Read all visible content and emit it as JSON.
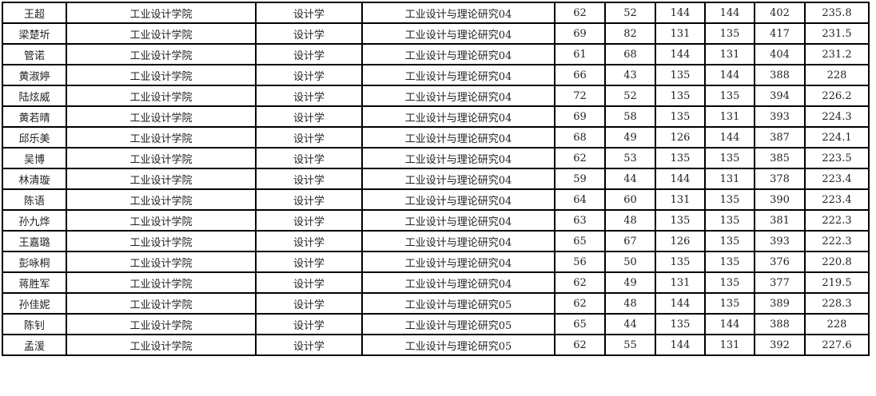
{
  "table": {
    "rows": [
      [
        "王超",
        "工业设计学院",
        "设计学",
        "工业设计与理论研究04",
        "62",
        "52",
        "144",
        "144",
        "402",
        "235.8"
      ],
      [
        "梁楚圻",
        "工业设计学院",
        "设计学",
        "工业设计与理论研究04",
        "69",
        "82",
        "131",
        "135",
        "417",
        "231.5"
      ],
      [
        "管诺",
        "工业设计学院",
        "设计学",
        "工业设计与理论研究04",
        "61",
        "68",
        "144",
        "131",
        "404",
        "231.2"
      ],
      [
        "黄淑婷",
        "工业设计学院",
        "设计学",
        "工业设计与理论研究04",
        "66",
        "43",
        "135",
        "144",
        "388",
        "228"
      ],
      [
        "陆炫威",
        "工业设计学院",
        "设计学",
        "工业设计与理论研究04",
        "72",
        "52",
        "135",
        "135",
        "394",
        "226.2"
      ],
      [
        "黄若晴",
        "工业设计学院",
        "设计学",
        "工业设计与理论研究04",
        "69",
        "58",
        "135",
        "131",
        "393",
        "224.3"
      ],
      [
        "邱乐美",
        "工业设计学院",
        "设计学",
        "工业设计与理论研究04",
        "68",
        "49",
        "126",
        "144",
        "387",
        "224.1"
      ],
      [
        "吴博",
        "工业设计学院",
        "设计学",
        "工业设计与理论研究04",
        "62",
        "53",
        "135",
        "135",
        "385",
        "223.5"
      ],
      [
        "林清璇",
        "工业设计学院",
        "设计学",
        "工业设计与理论研究04",
        "59",
        "44",
        "144",
        "131",
        "378",
        "223.4"
      ],
      [
        "陈语",
        "工业设计学院",
        "设计学",
        "工业设计与理论研究04",
        "64",
        "60",
        "131",
        "135",
        "390",
        "223.4"
      ],
      [
        "孙九烨",
        "工业设计学院",
        "设计学",
        "工业设计与理论研究04",
        "63",
        "48",
        "135",
        "135",
        "381",
        "222.3"
      ],
      [
        "王嘉璐",
        "工业设计学院",
        "设计学",
        "工业设计与理论研究04",
        "65",
        "67",
        "126",
        "135",
        "393",
        "222.3"
      ],
      [
        "彭咏桐",
        "工业设计学院",
        "设计学",
        "工业设计与理论研究04",
        "56",
        "50",
        "135",
        "135",
        "376",
        "220.8"
      ],
      [
        "蒋胜军",
        "工业设计学院",
        "设计学",
        "工业设计与理论研究04",
        "62",
        "49",
        "131",
        "135",
        "377",
        "219.5"
      ],
      [
        "孙佳妮",
        "工业设计学院",
        "设计学",
        "工业设计与理论研究05",
        "62",
        "48",
        "144",
        "135",
        "389",
        "228.3"
      ],
      [
        "陈钊",
        "工业设计学院",
        "设计学",
        "工业设计与理论研究05",
        "65",
        "44",
        "135",
        "144",
        "388",
        "228"
      ],
      [
        "孟湲",
        "工业设计学院",
        "设计学",
        "工业设计与理论研究05",
        "62",
        "55",
        "144",
        "131",
        "392",
        "227.6"
      ]
    ]
  }
}
